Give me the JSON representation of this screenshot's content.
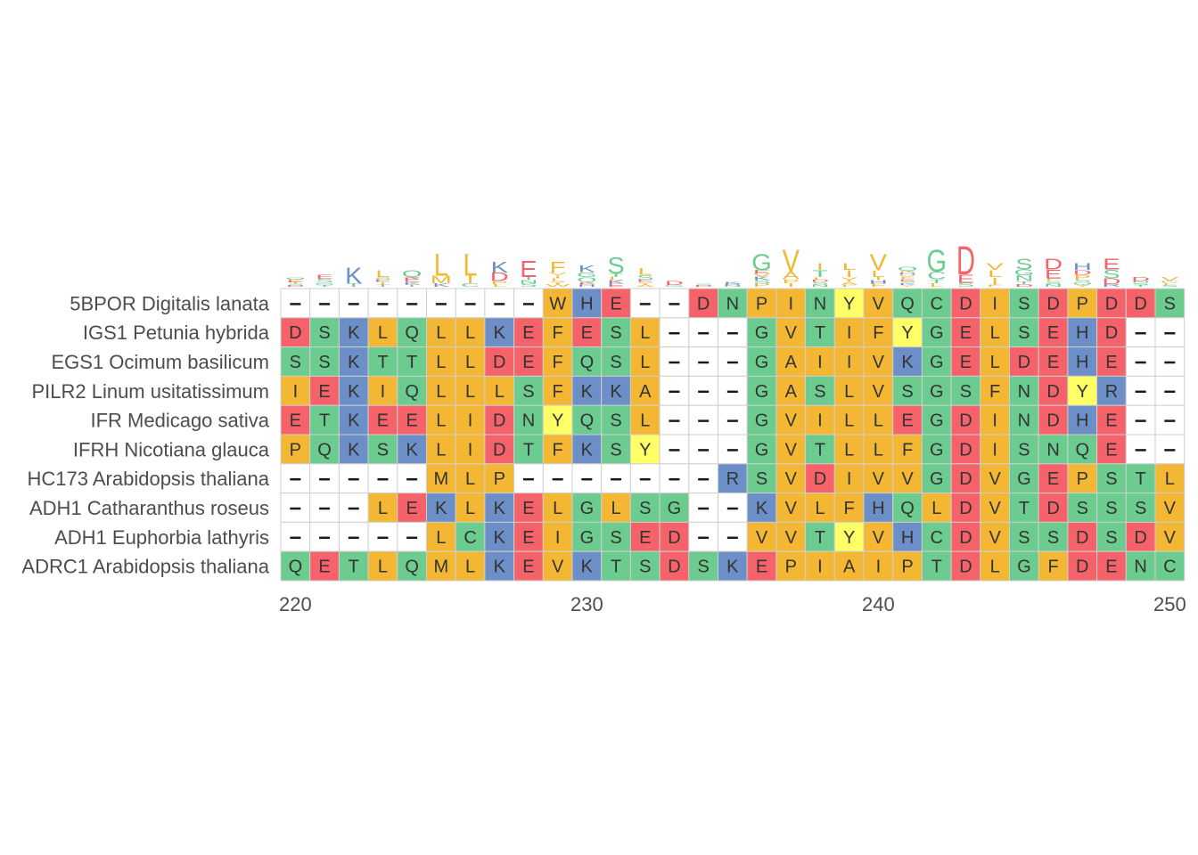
{
  "colors": {
    "red": "#f5626a",
    "green": "#6ccb8f",
    "orange": "#f3b733",
    "blue": "#6b8fc6",
    "yellow": "#ffff66",
    "white": "#ffffff",
    "grid": "#cfcfcf",
    "text": "#4d4d4d"
  },
  "residue_color_groups": {
    "red": [
      "D",
      "E"
    ],
    "green": [
      "S",
      "T",
      "Q",
      "N",
      "G",
      "C"
    ],
    "orange": [
      "A",
      "V",
      "L",
      "I",
      "M",
      "P",
      "W",
      "F"
    ],
    "blue": [
      "K",
      "R",
      "H"
    ],
    "yellow": [
      "Y",
      "F_pos"
    ]
  },
  "chart_data": {
    "type": "heatmap",
    "x_start": 219,
    "x_ticks": [
      220,
      230,
      240,
      250
    ],
    "sequences": [
      {
        "name": "5BPOR Digitalis lanata",
        "residues": "---------WHE--DNPINYVQCDISDPDDS"
      },
      {
        "name": "IGS1 Petunia hybrida",
        "residues": "DSKLQLLKEFESL---GVTIFYGELSEHD--"
      },
      {
        "name": "EGS1 Ocimum basilicum",
        "residues": "SSKTTLLDEFQSL---GAIIVKGELDEHE--"
      },
      {
        "name": "PILR2 Linum usitatissimum",
        "residues": "IEKIQLLLSFKKA---GASLVSGSFNDYR--"
      },
      {
        "name": "IFR Medicago sativa",
        "residues": "ETKEELIDNYQSL---GVILLEGDINDHE--"
      },
      {
        "name": "IFRH Nicotiana glauca",
        "residues": "PQKSKLIDTFKSY---GVTLLFGDISNQE--"
      },
      {
        "name": "HC173 Arabidopsis thaliana",
        "residues": "-----MLP-------RSVDIVVGDVGEPSTL"
      },
      {
        "name": "ADH1 Catharanthus roseus",
        "residues": "---LEKLKELGLSG--KVLFHQLDVTDSSSV"
      },
      {
        "name": "ADH1 Euphorbia lathyris",
        "residues": "-----LCKEIGSED--VVTYVHCDVSSDSDV"
      },
      {
        "name": "ADRC1 Arabidopsis thaliana",
        "residues": "QETLQMLKEVKTSDSKEPIAIPTDLGFDENC"
      }
    ],
    "consensus_logo": "EHKLQLLKEFKSLD-RGVTLVQGDVSDHED-"
  }
}
